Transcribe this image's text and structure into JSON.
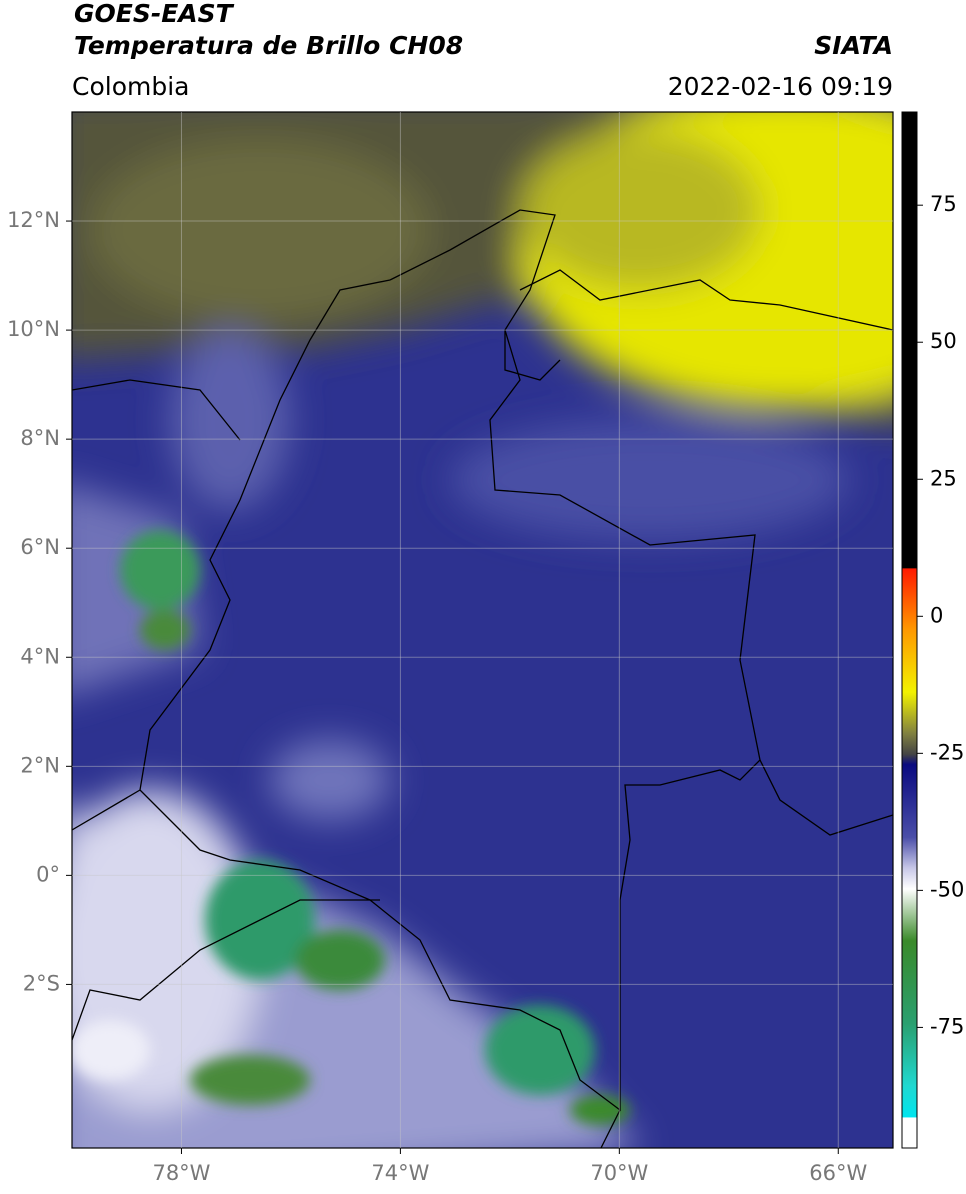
{
  "header": {
    "line1": "GOES-EAST",
    "title": "Temperatura de Brillo CH08",
    "source": "SIATA",
    "region": "Colombia",
    "datetime": "2022-02-16 09:19"
  },
  "map": {
    "xlim": [
      -80,
      -65
    ],
    "ylim": [
      -5,
      14
    ],
    "xticks": [
      {
        "value": -78,
        "label": "78°W"
      },
      {
        "value": -74,
        "label": "74°W"
      },
      {
        "value": -70,
        "label": "70°W"
      },
      {
        "value": -66,
        "label": "66°W"
      }
    ],
    "yticks": [
      {
        "value": 12,
        "label": "12°N"
      },
      {
        "value": 10,
        "label": "10°N"
      },
      {
        "value": 8,
        "label": "8°N"
      },
      {
        "value": 6,
        "label": "6°N"
      },
      {
        "value": 4,
        "label": "4°N"
      },
      {
        "value": 2,
        "label": "2°N"
      },
      {
        "value": 0,
        "label": "0°"
      },
      {
        "value": -2,
        "label": "2°S"
      }
    ],
    "grid": true
  },
  "colorbar": {
    "lim": [
      -97,
      92
    ],
    "ticks": [
      75,
      50,
      25,
      0,
      -25,
      -50,
      -75
    ]
  }
}
